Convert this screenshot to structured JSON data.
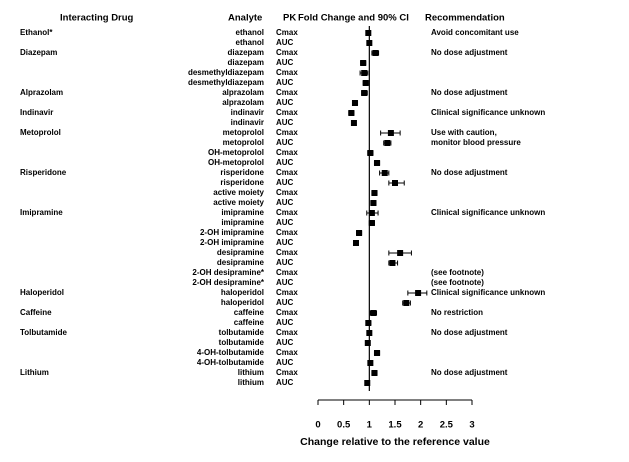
{
  "chart_data": {
    "type": "forest",
    "headers": {
      "drug": "Interacting Drug",
      "analyte": "Analyte",
      "pk": "PK",
      "ci": "Fold Change and 90% CI",
      "recommendation": "Recommendation"
    },
    "x_label": "Change relative to the reference value",
    "xlim": [
      0,
      3
    ],
    "xticks": [
      0,
      0.5,
      1,
      1.5,
      2,
      2.5,
      3
    ],
    "reference": 1,
    "color": "#000000",
    "rows": [
      {
        "drug": "Ethanol*",
        "analyte": "ethanol",
        "pk": "Cmax",
        "value": 0.98,
        "low": 0.95,
        "high": 1.02,
        "recommendation": "Avoid concomitant use"
      },
      {
        "drug": null,
        "analyte": "ethanol",
        "pk": "AUC",
        "value": 1.0,
        "low": 0.97,
        "high": 1.03,
        "recommendation": null
      },
      {
        "drug": "Diazepam",
        "analyte": "diazepam",
        "pk": "Cmax",
        "value": 1.12,
        "low": 1.05,
        "high": 1.18,
        "recommendation": "No dose adjustment"
      },
      {
        "drug": null,
        "analyte": "diazepam",
        "pk": "AUC",
        "value": 0.88,
        "low": 0.83,
        "high": 0.93,
        "recommendation": null
      },
      {
        "drug": null,
        "analyte": "desmethyldiazepam",
        "pk": "Cmax",
        "value": 0.9,
        "low": 0.82,
        "high": 0.97,
        "recommendation": null
      },
      {
        "drug": null,
        "analyte": "desmethyldiazepam",
        "pk": "AUC",
        "value": 0.93,
        "low": 0.88,
        "high": 0.98,
        "recommendation": null
      },
      {
        "drug": "Alprazolam",
        "analyte": "alprazolam",
        "pk": "Cmax",
        "value": 0.9,
        "low": 0.85,
        "high": 0.96,
        "recommendation": "No dose adjustment"
      },
      {
        "drug": null,
        "analyte": "alprazolam",
        "pk": "AUC",
        "value": 0.72,
        "low": 0.68,
        "high": 0.77,
        "recommendation": null
      },
      {
        "drug": "Indinavir",
        "analyte": "indinavir",
        "pk": "Cmax",
        "value": 0.65,
        "low": 0.6,
        "high": 0.7,
        "recommendation": "Clinical significance unknown"
      },
      {
        "drug": null,
        "analyte": "indinavir",
        "pk": "AUC",
        "value": 0.7,
        "low": 0.66,
        "high": 0.74,
        "recommendation": null
      },
      {
        "drug": "Metoprolol",
        "analyte": "metoprolol",
        "pk": "Cmax",
        "value": 1.42,
        "low": 1.22,
        "high": 1.6,
        "recommendation": "Use with caution,"
      },
      {
        "drug": null,
        "analyte": "metoprolol",
        "pk": "AUC",
        "value": 1.35,
        "low": 1.28,
        "high": 1.42,
        "recommendation": "monitor blood pressure"
      },
      {
        "drug": null,
        "analyte": "OH-metoprolol",
        "pk": "Cmax",
        "value": 1.02,
        "low": 0.97,
        "high": 1.07,
        "recommendation": null
      },
      {
        "drug": null,
        "analyte": "OH-metoprolol",
        "pk": "AUC",
        "value": 1.15,
        "low": 1.1,
        "high": 1.2,
        "recommendation": null
      },
      {
        "drug": "Risperidone",
        "analyte": "risperidone",
        "pk": "Cmax",
        "value": 1.3,
        "low": 1.2,
        "high": 1.38,
        "recommendation": "No dose adjustment"
      },
      {
        "drug": null,
        "analyte": "risperidone",
        "pk": "AUC",
        "value": 1.5,
        "low": 1.38,
        "high": 1.68,
        "recommendation": null
      },
      {
        "drug": null,
        "analyte": "active moiety",
        "pk": "Cmax",
        "value": 1.1,
        "low": 1.05,
        "high": 1.15,
        "recommendation": null
      },
      {
        "drug": null,
        "analyte": "active moiety",
        "pk": "AUC",
        "value": 1.08,
        "low": 1.03,
        "high": 1.13,
        "recommendation": null
      },
      {
        "drug": "Imipramine",
        "analyte": "imipramine",
        "pk": "Cmax",
        "value": 1.05,
        "low": 0.95,
        "high": 1.17,
        "recommendation": "Clinical significance unknown"
      },
      {
        "drug": null,
        "analyte": "imipramine",
        "pk": "AUC",
        "value": 1.05,
        "low": 1.0,
        "high": 1.1,
        "recommendation": null
      },
      {
        "drug": null,
        "analyte": "2-OH imipramine",
        "pk": "Cmax",
        "value": 0.8,
        "low": 0.75,
        "high": 0.85,
        "recommendation": null
      },
      {
        "drug": null,
        "analyte": "2-OH imipramine",
        "pk": "AUC",
        "value": 0.74,
        "low": 0.7,
        "high": 0.78,
        "recommendation": null
      },
      {
        "drug": null,
        "analyte": "desipramine",
        "pk": "Cmax",
        "value": 1.6,
        "low": 1.38,
        "high": 1.82,
        "recommendation": null
      },
      {
        "drug": null,
        "analyte": "desipramine",
        "pk": "AUC",
        "value": 1.45,
        "low": 1.38,
        "high": 1.55,
        "recommendation": null
      },
      {
        "drug": null,
        "analyte": "2-OH desipramine*",
        "pk": "Cmax",
        "value": null,
        "low": null,
        "high": null,
        "recommendation": "(see footnote)"
      },
      {
        "drug": null,
        "analyte": "2-OH desipramine*",
        "pk": "AUC",
        "value": null,
        "low": null,
        "high": null,
        "recommendation": "(see footnote)"
      },
      {
        "drug": "Haloperidol",
        "analyte": "haloperidol",
        "pk": "Cmax",
        "value": 1.95,
        "low": 1.75,
        "high": 2.12,
        "recommendation": "Clinical significance unknown"
      },
      {
        "drug": null,
        "analyte": "haloperidol",
        "pk": "AUC",
        "value": 1.72,
        "low": 1.65,
        "high": 1.8,
        "recommendation": null
      },
      {
        "drug": "Caffeine",
        "analyte": "caffeine",
        "pk": "Cmax",
        "value": 1.08,
        "low": 1.02,
        "high": 1.14,
        "recommendation": "No restriction"
      },
      {
        "drug": null,
        "analyte": "caffeine",
        "pk": "AUC",
        "value": 0.98,
        "low": 0.94,
        "high": 1.03,
        "recommendation": null
      },
      {
        "drug": "Tolbutamide",
        "analyte": "tolbutamide",
        "pk": "Cmax",
        "value": 1.0,
        "low": 0.96,
        "high": 1.04,
        "recommendation": "No dose adjustment"
      },
      {
        "drug": null,
        "analyte": "tolbutamide",
        "pk": "AUC",
        "value": 0.97,
        "low": 0.94,
        "high": 1.0,
        "recommendation": null
      },
      {
        "drug": null,
        "analyte": "4-OH-tolbutamide",
        "pk": "Cmax",
        "value": 1.15,
        "low": 1.1,
        "high": 1.2,
        "recommendation": null
      },
      {
        "drug": null,
        "analyte": "4-OH-tolbutamide",
        "pk": "AUC",
        "value": 1.02,
        "low": 0.98,
        "high": 1.06,
        "recommendation": null
      },
      {
        "drug": "Lithium",
        "analyte": "lithium",
        "pk": "Cmax",
        "value": 1.1,
        "low": 1.05,
        "high": 1.15,
        "recommendation": "No dose adjustment"
      },
      {
        "drug": null,
        "analyte": "lithium",
        "pk": "AUC",
        "value": 0.96,
        "low": 0.92,
        "high": 1.0,
        "recommendation": null
      }
    ]
  }
}
